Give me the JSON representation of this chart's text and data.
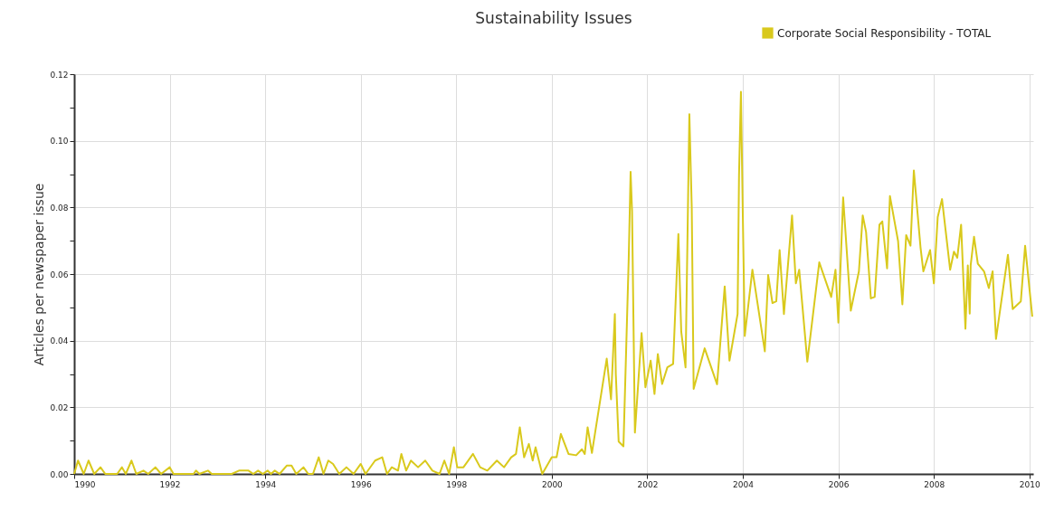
{
  "chart_data": {
    "type": "line",
    "title": "Sustainability Issues",
    "ylabel": "Articles per newspaper issue",
    "legend": "top right",
    "grid": true,
    "marker": "none",
    "line_style": "solid",
    "xlim": [
      1990,
      2010.08
    ],
    "xticks": [
      1990,
      1992,
      1994,
      1996,
      1998,
      2000,
      2002,
      2004,
      2006,
      2008,
      2010
    ],
    "ylim": [
      0,
      0.12
    ],
    "yticks": [
      {
        "value": 0,
        "label": "0.00"
      },
      {
        "value": 0.01,
        "label": null
      },
      {
        "value": 0.02,
        "label": "0.02"
      },
      {
        "value": 0.03,
        "label": null
      },
      {
        "value": 0.04,
        "label": "0.04"
      },
      {
        "value": 0.05,
        "label": null
      },
      {
        "value": 0.06,
        "label": "0.06"
      },
      {
        "value": 0.07,
        "label": null
      },
      {
        "value": 0.08,
        "label": "0.08"
      },
      {
        "value": 0.09,
        "label": null
      },
      {
        "value": 0.1,
        "label": "0.10"
      },
      {
        "value": 0.11,
        "label": null
      },
      {
        "value": 0.12,
        "label": "0.12"
      }
    ],
    "series": [
      {
        "name": "Corporate Social Responsibility - TOTAL",
        "color": "#d9c91c",
        "x": [
          1990.0,
          1990.08,
          1990.2,
          1990.3,
          1990.42,
          1990.55,
          1990.65,
          1990.9,
          1991.0,
          1991.08,
          1991.2,
          1991.3,
          1991.45,
          1991.55,
          1991.7,
          1991.82,
          1992.0,
          1992.08,
          1992.5,
          1992.55,
          1992.62,
          1992.8,
          1992.88,
          1993.3,
          1993.45,
          1993.65,
          1993.75,
          1993.85,
          1993.95,
          1994.05,
          1994.12,
          1994.2,
          1994.3,
          1994.45,
          1994.55,
          1994.65,
          1994.8,
          1994.9,
          1995.0,
          1995.12,
          1995.22,
          1995.32,
          1995.42,
          1995.55,
          1995.7,
          1995.85,
          1996.0,
          1996.1,
          1996.3,
          1996.45,
          1996.55,
          1996.65,
          1996.78,
          1996.85,
          1996.95,
          1997.05,
          1997.2,
          1997.35,
          1997.5,
          1997.65,
          1997.75,
          1997.85,
          1997.95,
          1998.02,
          1998.15,
          1998.35,
          1998.5,
          1998.65,
          1998.85,
          1999.0,
          1999.15,
          1999.25,
          1999.33,
          1999.42,
          1999.52,
          1999.6,
          1999.66,
          1999.8,
          2000.0,
          2000.1,
          2000.19,
          2000.35,
          2000.51,
          2000.63,
          2000.69,
          2000.75,
          2000.84,
          2001.15,
          2001.24,
          2001.32,
          2001.34,
          2001.4,
          2001.5,
          2001.61,
          2001.65,
          2001.68,
          2001.74,
          2001.88,
          2001.96,
          2002.07,
          2002.15,
          2002.22,
          2002.31,
          2002.42,
          2002.54,
          2002.65,
          2002.71,
          2002.8,
          2002.88,
          2002.93,
          2002.97,
          2003.2,
          2003.46,
          2003.62,
          2003.72,
          2003.89,
          2003.92,
          2003.96,
          2004.0,
          2004.04,
          2004.2,
          2004.46,
          2004.53,
          2004.62,
          2004.7,
          2004.77,
          2004.86,
          2005.03,
          2005.11,
          2005.18,
          2005.35,
          2005.6,
          2005.85,
          2005.94,
          2006.0,
          2006.1,
          2006.26,
          2006.43,
          2006.51,
          2006.58,
          2006.68,
          2006.76,
          2006.86,
          2006.92,
          2007.02,
          2007.08,
          2007.25,
          2007.34,
          2007.42,
          2007.51,
          2007.58,
          2007.72,
          2007.78,
          2007.92,
          2008.0,
          2008.08,
          2008.17,
          2008.34,
          2008.42,
          2008.49,
          2008.57,
          2008.66,
          2008.71,
          2008.75,
          2008.77,
          2008.84,
          2008.92,
          2009.05,
          2009.15,
          2009.23,
          2009.3,
          2009.55,
          2009.65,
          2009.82,
          2009.91,
          2010.06
        ],
        "values": [
          0,
          0.004,
          0,
          0.004,
          0,
          0.002,
          0,
          0,
          0.002,
          0,
          0.004,
          0,
          0.001,
          0,
          0.002,
          0,
          0.002,
          0,
          0,
          0.001,
          0,
          0.001,
          0,
          0,
          0.001,
          0.001,
          0,
          0.001,
          0,
          0.001,
          0,
          0.001,
          0,
          0.0025,
          0.0025,
          0,
          0.002,
          0,
          0,
          0.005,
          0,
          0.004,
          0.003,
          0,
          0.002,
          0,
          0.003,
          0,
          0.004,
          0.005,
          0,
          0.002,
          0.001,
          0.006,
          0.001,
          0.004,
          0.002,
          0.004,
          0.001,
          0,
          0.004,
          0,
          0.008,
          0.002,
          0.002,
          0.006,
          0.002,
          0.001,
          0.004,
          0.002,
          0.005,
          0.006,
          0.014,
          0.005,
          0.009,
          0.004,
          0.008,
          0,
          0.005,
          0.005,
          0.012,
          0.006,
          0.0056,
          0.0074,
          0.006,
          0.014,
          0.0063,
          0.0346,
          0.0224,
          0.048,
          0.03,
          0.0097,
          0.0083,
          0.0644,
          0.0907,
          0.079,
          0.0124,
          0.0423,
          0.026,
          0.034,
          0.024,
          0.036,
          0.027,
          0.032,
          0.033,
          0.072,
          0.0427,
          0.032,
          0.108,
          0.08,
          0.0255,
          0.0377,
          0.0269,
          0.0563,
          0.034,
          0.048,
          0.0898,
          0.1147,
          0.077,
          0.0414,
          0.0613,
          0.0368,
          0.0597,
          0.0513,
          0.0518,
          0.0672,
          0.048,
          0.0776,
          0.0572,
          0.0613,
          0.0337,
          0.0635,
          0.0531,
          0.0613,
          0.0454,
          0.083,
          0.049,
          0.0608,
          0.0776,
          0.0726,
          0.0527,
          0.0531,
          0.0748,
          0.0758,
          0.0617,
          0.0834,
          0.0699,
          0.0509,
          0.0717,
          0.0685,
          0.0911,
          0.068,
          0.0608,
          0.0672,
          0.0572,
          0.0771,
          0.0825,
          0.0613,
          0.0667,
          0.0649,
          0.0748,
          0.0436,
          0.0626,
          0.0481,
          0.0626,
          0.0712,
          0.0631,
          0.0608,
          0.0558,
          0.0608,
          0.0405,
          0.0658,
          0.0495,
          0.0518,
          0.0685,
          0.0472
        ]
      }
    ]
  }
}
